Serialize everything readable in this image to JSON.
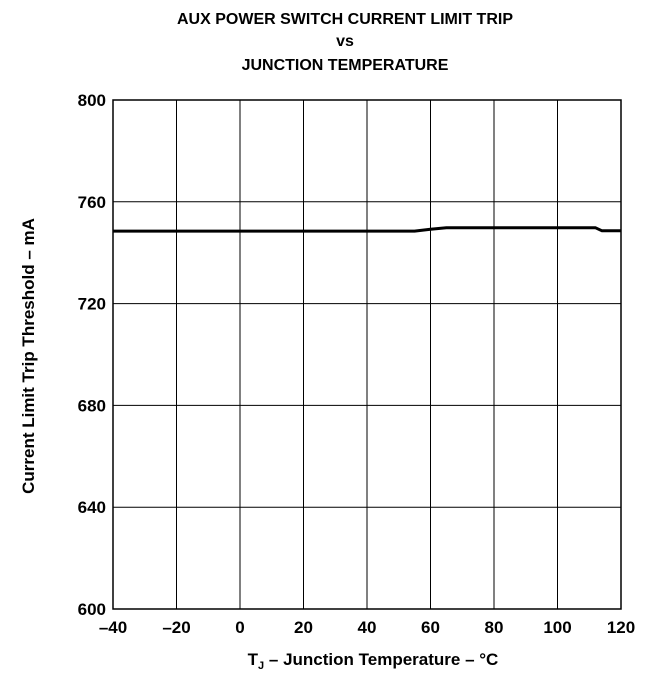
{
  "chart_data": {
    "type": "line",
    "title_lines": [
      "AUX POWER SWITCH CURRENT LIMIT TRIP",
      "vs",
      "JUNCTION TEMPERATURE"
    ],
    "xlabel": {
      "prefix": "T",
      "subscript": "J",
      "suffix": " – Junction Temperature – °C"
    },
    "ylabel": "Current Limit Trip Threshold – mA",
    "xlim": [
      -40,
      120
    ],
    "ylim": [
      600,
      800
    ],
    "x_ticks": [
      -40,
      -20,
      0,
      20,
      40,
      60,
      80,
      100,
      120
    ],
    "y_ticks": [
      600,
      640,
      680,
      720,
      760,
      800
    ],
    "x_tick_labels": [
      "–40",
      "–20",
      "0",
      "20",
      "40",
      "60",
      "80",
      "100",
      "120"
    ],
    "y_tick_labels": [
      "600",
      "640",
      "680",
      "720",
      "760",
      "800"
    ],
    "grid": true,
    "series": [
      {
        "x": [
          -40,
          -20,
          0,
          20,
          40,
          55,
          60,
          65,
          80,
          100,
          112,
          114,
          120
        ],
        "y": [
          748.5,
          748.5,
          748.5,
          748.5,
          748.5,
          748.5,
          749.2,
          749.8,
          749.8,
          749.8,
          749.8,
          748.6,
          748.6
        ]
      }
    ]
  }
}
